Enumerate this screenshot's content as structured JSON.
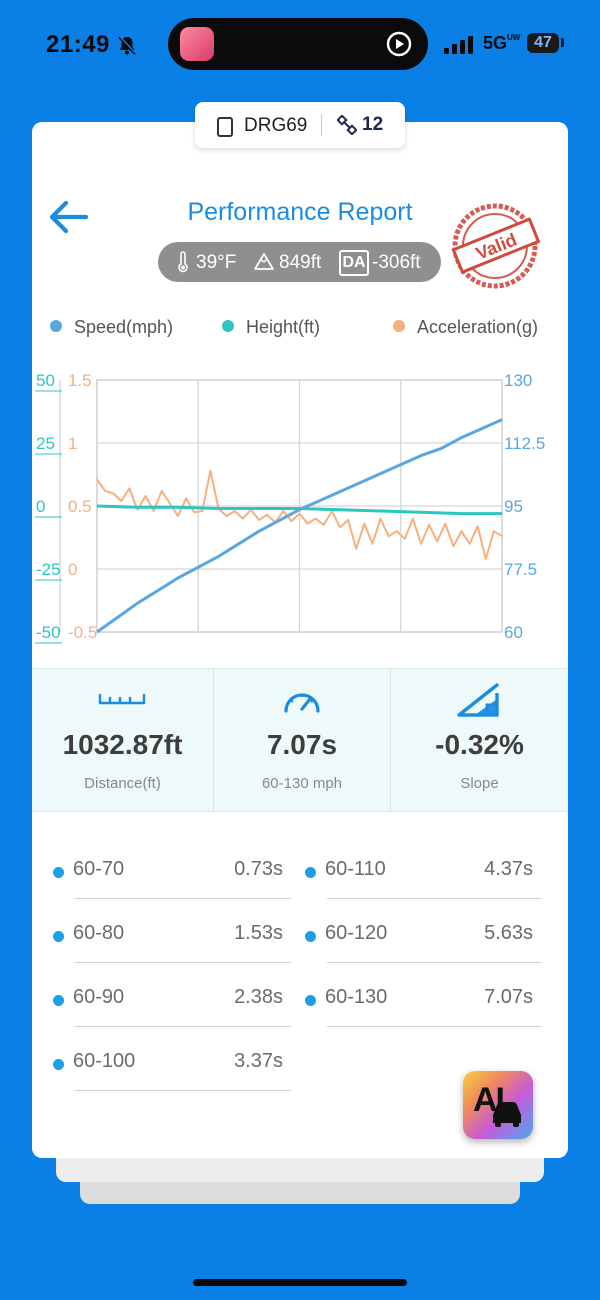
{
  "status_bar": {
    "time": "21:49",
    "network": "5G",
    "network_sub": "UW",
    "battery": "47"
  },
  "device": {
    "name": "DRG69",
    "satellites": "12"
  },
  "header": {
    "title": "Performance Report",
    "temperature": "39°F",
    "altitude": "849ft",
    "da_badge": "DA",
    "density_altitude": "-306ft",
    "stamp_text": "Valid"
  },
  "legend": {
    "speed": "Speed(mph)",
    "height": "Height(ft)",
    "acceleration": "Acceleration(g)"
  },
  "colors": {
    "speed": "#5aa6e0",
    "height": "#2cc6c0",
    "acceleration": "#f6b07e",
    "accent": "#1c8ce0",
    "background": "#0a7fe6"
  },
  "chart_data": {
    "type": "line",
    "axes": {
      "height_left": {
        "ticks": [
          "50",
          "25",
          "0",
          "-25",
          "-50"
        ],
        "range": [
          -50,
          50
        ]
      },
      "accel_left": {
        "ticks": [
          "1.5",
          "1",
          "0.5",
          "0",
          "-0.5"
        ],
        "range": [
          -0.5,
          1.5
        ]
      },
      "speed_right": {
        "ticks": [
          "130",
          "112.5",
          "95",
          "77.5",
          "60"
        ],
        "range": [
          60,
          130
        ]
      }
    },
    "series": [
      {
        "name": "Speed(mph)",
        "axis": "speed_right",
        "x": [
          0,
          0.05,
          0.1,
          0.15,
          0.2,
          0.25,
          0.3,
          0.35,
          0.4,
          0.45,
          0.5,
          0.55,
          0.6,
          0.65,
          0.7,
          0.75,
          0.8,
          0.85,
          0.9,
          0.95,
          1.0
        ],
        "values": [
          60,
          64,
          68,
          71.5,
          75,
          78,
          81,
          84.5,
          88,
          91,
          94,
          96.5,
          99,
          101.5,
          104,
          106.5,
          109,
          111,
          114,
          116.5,
          119
        ]
      },
      {
        "name": "Height(ft)",
        "axis": "height_left",
        "x": [
          0,
          0.1,
          0.2,
          0.3,
          0.4,
          0.5,
          0.6,
          0.7,
          0.8,
          0.9,
          1.0
        ],
        "values": [
          0,
          -0.5,
          -0.5,
          -1,
          -1,
          -1,
          -1.5,
          -2,
          -2.5,
          -3,
          -3
        ]
      },
      {
        "name": "Acceleration(g)",
        "axis": "accel_left",
        "x": [
          0,
          0.02,
          0.04,
          0.06,
          0.08,
          0.1,
          0.12,
          0.14,
          0.16,
          0.18,
          0.2,
          0.22,
          0.24,
          0.26,
          0.28,
          0.3,
          0.32,
          0.34,
          0.36,
          0.38,
          0.4,
          0.42,
          0.44,
          0.46,
          0.48,
          0.5,
          0.52,
          0.54,
          0.56,
          0.58,
          0.6,
          0.62,
          0.64,
          0.66,
          0.68,
          0.7,
          0.72,
          0.74,
          0.76,
          0.78,
          0.8,
          0.82,
          0.84,
          0.86,
          0.88,
          0.9,
          0.92,
          0.94,
          0.96,
          0.98,
          1.0
        ],
        "values": [
          0.71,
          0.62,
          0.6,
          0.54,
          0.64,
          0.47,
          0.58,
          0.46,
          0.62,
          0.52,
          0.42,
          0.56,
          0.45,
          0.46,
          0.78,
          0.48,
          0.42,
          0.46,
          0.4,
          0.47,
          0.39,
          0.43,
          0.37,
          0.46,
          0.38,
          0.44,
          0.36,
          0.4,
          0.35,
          0.46,
          0.33,
          0.39,
          0.16,
          0.36,
          0.2,
          0.4,
          0.26,
          0.3,
          0.24,
          0.4,
          0.2,
          0.35,
          0.22,
          0.36,
          0.18,
          0.3,
          0.2,
          0.34,
          0.08,
          0.3,
          0.26
        ]
      }
    ],
    "grid": true
  },
  "stats": {
    "distance_value": "1032.87ft",
    "distance_label": "Distance(ft)",
    "time_value": "7.07s",
    "time_label": "60-130 mph",
    "slope_value": "-0.32%",
    "slope_label": "Slope"
  },
  "splits": [
    {
      "label": "60-70",
      "value": "0.73s"
    },
    {
      "label": "60-80",
      "value": "1.53s"
    },
    {
      "label": "60-90",
      "value": "2.38s"
    },
    {
      "label": "60-100",
      "value": "3.37s"
    },
    {
      "label": "60-110",
      "value": "4.37s"
    },
    {
      "label": "60-120",
      "value": "5.63s"
    },
    {
      "label": "60-130",
      "value": "7.07s"
    }
  ],
  "ai_button": {
    "label": "AI"
  }
}
